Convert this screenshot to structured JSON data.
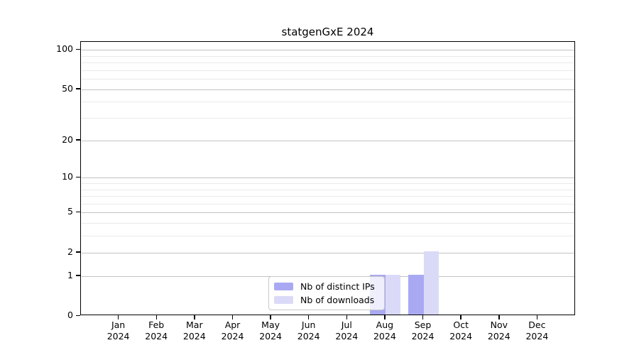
{
  "title": "statgenGxE 2024",
  "chart_data": {
    "type": "bar",
    "title": "statgenGxE 2024",
    "categories": [
      "Jan",
      "Feb",
      "Mar",
      "Apr",
      "May",
      "Jun",
      "Jul",
      "Aug",
      "Sep",
      "Oct",
      "Nov",
      "Dec"
    ],
    "year_label": "2024",
    "series": [
      {
        "name": "Nb of distinct IPs",
        "color": "#a9a9f3",
        "values": [
          0,
          0,
          0,
          0,
          0,
          0,
          0,
          1,
          1,
          0,
          0,
          0
        ]
      },
      {
        "name": "Nb of downloads",
        "color": "#dadaf8",
        "values": [
          0,
          0,
          0,
          0,
          0,
          0,
          0,
          1,
          2,
          0,
          0,
          0
        ]
      }
    ],
    "yscale": "log1p",
    "ylim": [
      0,
      115
    ],
    "yticks": [
      0,
      1,
      2,
      5,
      10,
      20,
      50,
      100
    ],
    "minor_gridlines": [
      3,
      4,
      6,
      7,
      8,
      9,
      30,
      40,
      60,
      70,
      80,
      90
    ],
    "grid": "horizontal",
    "legend_position": "lower-center",
    "colors": {
      "major_grid": "#c2c2c2",
      "minor_grid": "#eaeaea",
      "axis": "#000000",
      "background": "#ffffff"
    }
  }
}
